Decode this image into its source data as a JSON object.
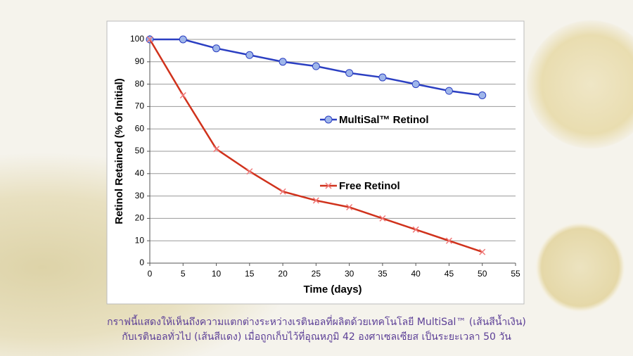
{
  "chart_data": {
    "type": "line",
    "x_label": "Time (days)",
    "y_label": "Retinol Retained (% of Initial)",
    "x": [
      0,
      5,
      10,
      15,
      20,
      25,
      30,
      35,
      40,
      45,
      50
    ],
    "series": [
      {
        "name": "MultiSal™ Retinol",
        "color": "#2b3fc2",
        "values": [
          100,
          100,
          96,
          93,
          90,
          88,
          85,
          83,
          80,
          77,
          75
        ]
      },
      {
        "name": "Free Retinol",
        "color": "#d0321c",
        "values": [
          100,
          75,
          51,
          41,
          32,
          28,
          25,
          20,
          15,
          10,
          5
        ]
      }
    ],
    "xlim": [
      0,
      55
    ],
    "xticks": [
      0,
      5,
      10,
      15,
      20,
      25,
      30,
      35,
      40,
      45,
      50,
      55
    ],
    "ylim": [
      0,
      100
    ],
    "yticks": [
      0,
      10,
      20,
      30,
      40,
      50,
      60,
      70,
      80,
      90,
      100
    ],
    "grid": true
  },
  "caption": [
    "กราฟนี้แสดงให้เห็นถึงความแตกต่างระหว่างเรตินอลที่ผลิตด้วยเทคโนโลยี MultiSal™ (เส้นสีน้ำเงิน)",
    "กับเรตินอลทั่วไป (เส้นสีแดง) เมื่อถูกเก็บไว้ที่อุณหภูมิ 42 องศาเซลเซียส เป็นระยะเวลา 50 วัน"
  ]
}
